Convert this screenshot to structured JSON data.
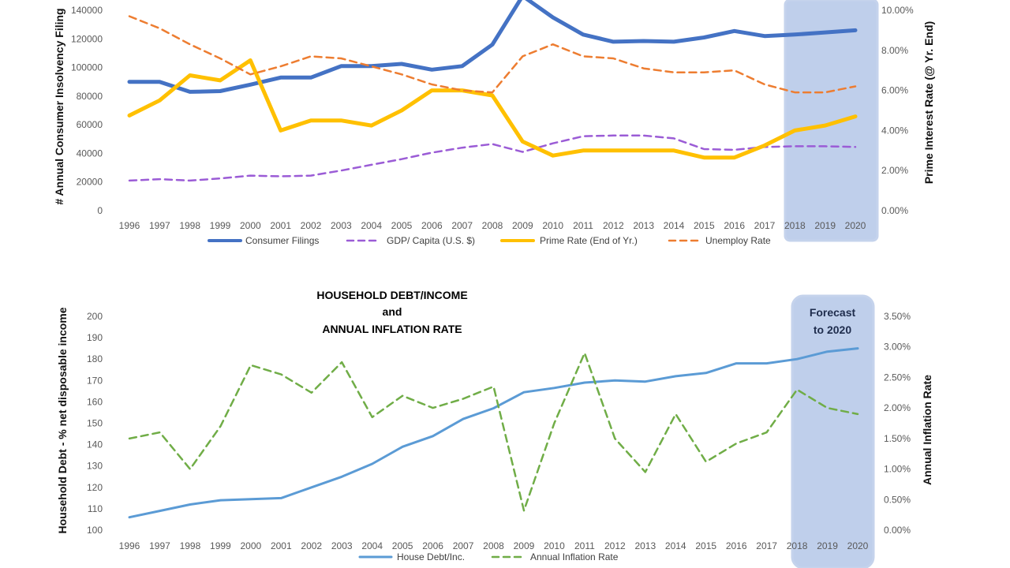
{
  "chart_data": [
    {
      "type": "line",
      "categories": [
        "1996",
        "1997",
        "1998",
        "1999",
        "2000",
        "2001",
        "2002",
        "2003",
        "2004",
        "2005",
        "2006",
        "2007",
        "2008",
        "2009",
        "2010",
        "2011",
        "2012",
        "2013",
        "2014",
        "2015",
        "2016",
        "2017",
        "2018",
        "2019",
        "2020"
      ],
      "ylabel": "# Annual Consumer Insolvency Filing",
      "y2label": "Prime Interest Rate (@ Yr. End)",
      "ylim": [
        0,
        140000
      ],
      "y2lim": [
        0,
        0.1
      ],
      "yticks": [
        "0",
        "20000",
        "40000",
        "60000",
        "80000",
        "100000",
        "120000",
        "140000"
      ],
      "y2ticks": [
        "0.00%",
        "2.00%",
        "4.00%",
        "6.00%",
        "8.00%",
        "10.00%"
      ],
      "forecast_start": "2018",
      "series": [
        {
          "name": "Consumer Filings",
          "axis": "left",
          "style": "solid",
          "color": "#4472C4",
          "width": 5,
          "values": [
            90000,
            90000,
            83000,
            83500,
            88000,
            93000,
            93000,
            101000,
            101000,
            102500,
            98500,
            101000,
            116000,
            150000,
            135000,
            123000,
            118000,
            118500,
            118000,
            121000,
            125500,
            122000,
            123000,
            124500,
            126000
          ]
        },
        {
          "name": "GDP/ Capita (U.S. $)",
          "axis": "left",
          "style": "dashed",
          "color": "#9B5CD6",
          "width": 2.5,
          "values": [
            21000,
            22000,
            21000,
            22500,
            24500,
            24000,
            24500,
            28000,
            32000,
            36000,
            40500,
            44000,
            46500,
            41000,
            47000,
            52000,
            52500,
            52500,
            50500,
            43000,
            42500,
            44500,
            45000,
            45000,
            44500
          ]
        },
        {
          "name": "Prime Rate (End of Yr.)",
          "axis": "right",
          "style": "solid",
          "color": "#FFC000",
          "width": 5,
          "values": [
            0.0475,
            0.055,
            0.0675,
            0.065,
            0.075,
            0.04,
            0.045,
            0.045,
            0.0425,
            0.05,
            0.06,
            0.06,
            0.0575,
            0.0345,
            0.0275,
            0.03,
            0.03,
            0.03,
            0.03,
            0.0265,
            0.0265,
            0.0325,
            0.04,
            0.0425,
            0.047
          ]
        },
        {
          "name": "Unemploy Rate",
          "axis": "right",
          "style": "dashed",
          "color": "#ED7D31",
          "width": 2.5,
          "values": [
            0.097,
            0.091,
            0.083,
            0.076,
            0.068,
            0.072,
            0.077,
            0.076,
            0.072,
            0.068,
            0.063,
            0.06,
            0.059,
            0.077,
            0.083,
            0.077,
            0.076,
            0.071,
            0.069,
            0.069,
            0.07,
            0.063,
            0.059,
            0.059,
            0.062
          ]
        }
      ]
    },
    {
      "type": "line",
      "title_lines": [
        "HOUSEHOLD DEBT/INCOME",
        "and",
        "ANNUAL INFLATION RATE"
      ],
      "forecast_label_lines": [
        "Forecast",
        "to 2020"
      ],
      "categories": [
        "1996",
        "1997",
        "1998",
        "1999",
        "2000",
        "2001",
        "2002",
        "2003",
        "2004",
        "2005",
        "2006",
        "2007",
        "2008",
        "2009",
        "2010",
        "2011",
        "2012",
        "2013",
        "2014",
        "2015",
        "2016",
        "2017",
        "2018",
        "2019",
        "2020"
      ],
      "ylabel": "Household Debt - % net disposable income",
      "y2label": "Annual Inflation Rate",
      "ylim": [
        100,
        200
      ],
      "y2lim": [
        0,
        0.035
      ],
      "yticks": [
        "100",
        "110",
        "120",
        "130",
        "140",
        "150",
        "160",
        "170",
        "180",
        "190",
        "200"
      ],
      "y2ticks": [
        "0.00%",
        "0.50%",
        "1.00%",
        "1.50%",
        "2.00%",
        "2.50%",
        "3.00%",
        "3.50%"
      ],
      "forecast_start": "2018",
      "series": [
        {
          "name": "House Debt/Inc.",
          "axis": "left",
          "style": "solid",
          "color": "#5B9BD5",
          "width": 3,
          "values": [
            106,
            109,
            112,
            114,
            114.5,
            115,
            120,
            125,
            131,
            139,
            144,
            152,
            157,
            164.5,
            166.5,
            169,
            170,
            169.5,
            172,
            173.5,
            178,
            178,
            180,
            183.5,
            185
          ]
        },
        {
          "name": "Annual Inflation Rate",
          "axis": "right",
          "style": "dashed",
          "color": "#70AD47",
          "width": 2.5,
          "values": [
            0.015,
            0.016,
            0.01,
            0.017,
            0.027,
            0.0255,
            0.0225,
            0.0275,
            0.0185,
            0.022,
            0.02,
            0.0215,
            0.0235,
            0.0032,
            0.0175,
            0.029,
            0.015,
            0.0095,
            0.019,
            0.0112,
            0.0142,
            0.016,
            0.023,
            0.02,
            0.019
          ]
        }
      ]
    }
  ]
}
